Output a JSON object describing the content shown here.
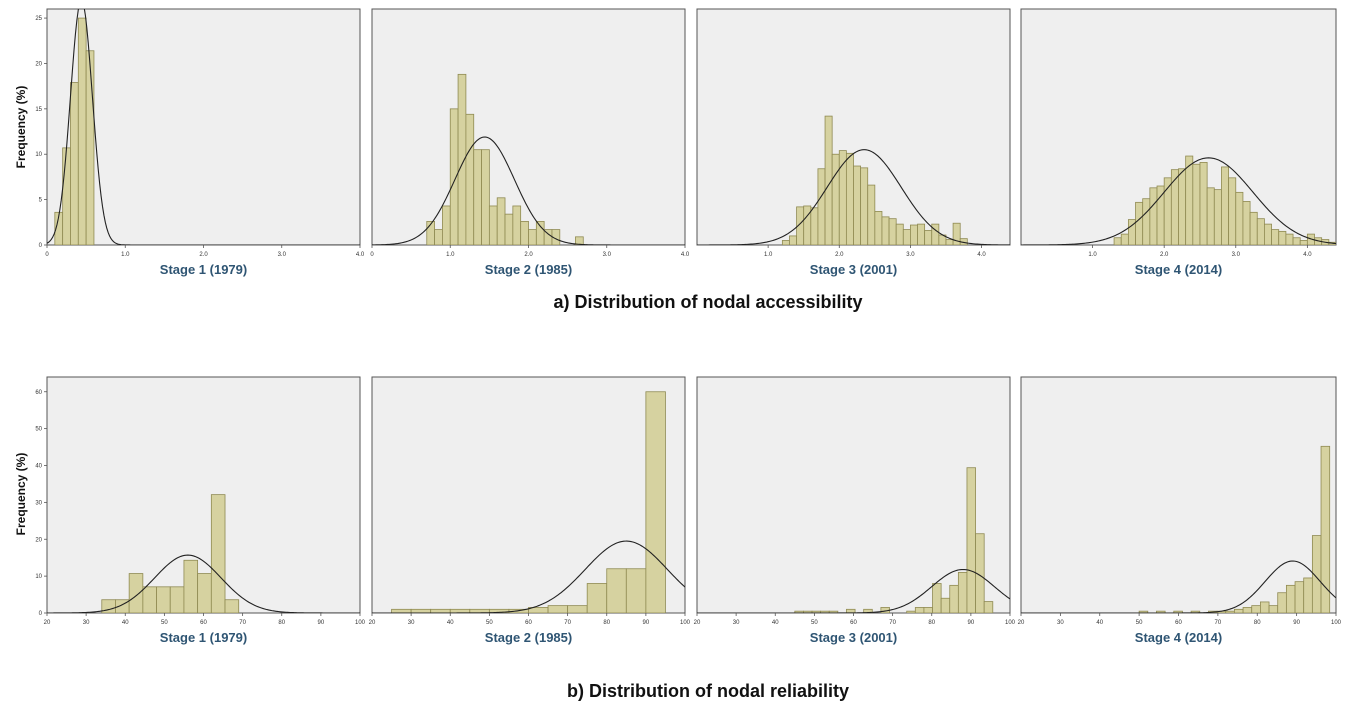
{
  "row_titles": {
    "accessibility": "a) Distribution of nodal accessibility",
    "reliability": "b) Distribution of nodal reliability"
  },
  "ylabel": "Frequency (%)",
  "chart_data": [
    {
      "id": "acc-1979",
      "row": "accessibility",
      "type": "bar",
      "title": "Stage 1 (1979)",
      "ylabel": "Frequency (%)",
      "xlim": [
        0,
        4.0
      ],
      "ylim": [
        0,
        26
      ],
      "xticks": [
        0,
        1.0,
        2.0,
        3.0,
        4.0
      ],
      "xtick_labels": [
        "0",
        "1.0",
        "2.0",
        "3.0",
        "4.0"
      ],
      "yticks": [
        0,
        5,
        10,
        15,
        20,
        25
      ],
      "ytick_labels": [
        "0",
        "5",
        "10",
        "15",
        "20",
        "25"
      ],
      "bin_width": 0.1,
      "bins": [
        0.1,
        0.2,
        0.3,
        0.4,
        0.5
      ],
      "values": [
        3.6,
        10.7,
        17.9,
        25.0,
        21.4
      ],
      "curve": {
        "mean": 0.44,
        "sd": 0.14,
        "peak": 27
      }
    },
    {
      "id": "acc-1985",
      "row": "accessibility",
      "type": "bar",
      "title": "Stage 2 (1985)",
      "ylabel": "",
      "xlim": [
        0,
        4.0
      ],
      "ylim": [
        0,
        26
      ],
      "xticks": [
        0,
        1.0,
        2.0,
        3.0,
        4.0
      ],
      "xtick_labels": [
        "0",
        "1.0",
        "2.0",
        "3.0",
        "4.0"
      ],
      "yticks": [],
      "ytick_labels": [],
      "bin_width": 0.1,
      "bins": [
        0.7,
        0.8,
        0.9,
        1.0,
        1.1,
        1.2,
        1.3,
        1.4,
        1.5,
        1.6,
        1.7,
        1.8,
        1.9,
        2.0,
        2.1,
        2.2,
        2.3,
        2.4,
        2.5,
        2.6,
        2.7
      ],
      "values": [
        2.6,
        1.7,
        4.3,
        15.0,
        18.8,
        14.4,
        10.5,
        10.5,
        4.3,
        5.2,
        3.4,
        4.3,
        2.6,
        1.7,
        2.6,
        1.7,
        1.7,
        0.0,
        0.0,
        0.9,
        0.0
      ],
      "curve": {
        "mean": 1.44,
        "sd": 0.38,
        "peak": 11.9
      }
    },
    {
      "id": "acc-2001",
      "row": "accessibility",
      "type": "bar",
      "title": "Stage 3 (2001)",
      "ylabel": "",
      "xlim": [
        0,
        4.4
      ],
      "ylim": [
        0,
        26
      ],
      "xticks": [
        1.0,
        2.0,
        3.0,
        4.0
      ],
      "xtick_labels": [
        "1.0",
        "2.0",
        "3.0",
        "4.0"
      ],
      "yticks": [],
      "ytick_labels": [],
      "bin_width": 0.1,
      "bins": [
        1.2,
        1.3,
        1.4,
        1.5,
        1.6,
        1.7,
        1.8,
        1.9,
        2.0,
        2.1,
        2.2,
        2.3,
        2.4,
        2.5,
        2.6,
        2.7,
        2.8,
        2.9,
        3.0,
        3.1,
        3.2,
        3.3,
        3.4,
        3.5,
        3.6,
        3.7,
        3.8,
        3.9
      ],
      "values": [
        0.5,
        1.0,
        4.2,
        4.3,
        4.1,
        8.4,
        14.2,
        10.0,
        10.4,
        10.1,
        8.7,
        8.5,
        6.6,
        3.7,
        3.1,
        2.9,
        2.3,
        1.7,
        2.2,
        2.3,
        1.6,
        2.3,
        1.1,
        0.6,
        2.4,
        0.7,
        0.0,
        0.0
      ],
      "curve": {
        "mean": 2.35,
        "sd": 0.52,
        "peak": 10.5
      }
    },
    {
      "id": "acc-2014",
      "row": "accessibility",
      "type": "bar",
      "title": "Stage 4 (2014)",
      "ylabel": "",
      "xlim": [
        0,
        4.4
      ],
      "ylim": [
        0,
        26
      ],
      "xticks": [
        1.0,
        2.0,
        3.0,
        4.0
      ],
      "xtick_labels": [
        "1.0",
        "2.0",
        "3.0",
        "4.0"
      ],
      "yticks": [],
      "ytick_labels": [],
      "bin_width": 0.1,
      "bins": [
        1.3,
        1.4,
        1.5,
        1.6,
        1.7,
        1.8,
        1.9,
        2.0,
        2.1,
        2.2,
        2.3,
        2.4,
        2.5,
        2.6,
        2.7,
        2.8,
        2.9,
        3.0,
        3.1,
        3.2,
        3.3,
        3.4,
        3.5,
        3.6,
        3.7,
        3.8,
        3.9,
        4.0,
        4.1,
        4.2,
        4.3
      ],
      "values": [
        0.8,
        1.2,
        2.8,
        4.7,
        5.1,
        6.3,
        6.5,
        7.4,
        8.3,
        8.4,
        9.8,
        8.9,
        9.1,
        6.3,
        6.1,
        8.6,
        7.4,
        5.8,
        4.8,
        3.6,
        2.9,
        2.3,
        1.7,
        1.5,
        1.2,
        0.8,
        0.5,
        1.2,
        0.8,
        0.6,
        0.3
      ],
      "curve": {
        "mean": 2.62,
        "sd": 0.62,
        "peak": 9.6
      }
    },
    {
      "id": "rel-1979",
      "row": "reliability",
      "type": "bar",
      "title": "Stage 1 (1979)",
      "ylabel": "Frequency (%)",
      "xlim": [
        20,
        100
      ],
      "ylim": [
        0,
        64
      ],
      "xticks": [
        20,
        30,
        40,
        50,
        60,
        70,
        80,
        90,
        100
      ],
      "xtick_labels": [
        "20",
        "30",
        "40",
        "50",
        "60",
        "70",
        "80",
        "90",
        "100"
      ],
      "yticks": [
        0,
        10,
        20,
        30,
        40,
        50,
        60
      ],
      "ytick_labels": [
        "0",
        "10",
        "20",
        "30",
        "40",
        "50",
        "60"
      ],
      "bin_width": 3.5,
      "bins": [
        34.0,
        37.5,
        41.0,
        44.5,
        48.0,
        51.5,
        55.0,
        58.5,
        62.0,
        65.5
      ],
      "values": [
        3.6,
        3.6,
        10.7,
        7.1,
        7.1,
        7.1,
        14.3,
        10.7,
        32.1,
        3.6
      ],
      "curve": {
        "mean": 56.0,
        "sd": 8.5,
        "peak": 15.7
      }
    },
    {
      "id": "rel-1985",
      "row": "reliability",
      "type": "bar",
      "title": "Stage 2 (1985)",
      "ylabel": "",
      "xlim": [
        20,
        100
      ],
      "ylim": [
        0,
        64
      ],
      "xticks": [
        20,
        30,
        40,
        50,
        60,
        70,
        80,
        90,
        100
      ],
      "xtick_labels": [
        "20",
        "30",
        "40",
        "50",
        "60",
        "70",
        "80",
        "90",
        "100"
      ],
      "yticks": [],
      "ytick_labels": [],
      "bin_width": 5,
      "bins": [
        25,
        30,
        35,
        40,
        45,
        50,
        55,
        60,
        65,
        70,
        75,
        80,
        85,
        90
      ],
      "values": [
        1.0,
        1.0,
        1.0,
        1.0,
        1.0,
        1.0,
        1.0,
        1.5,
        2.0,
        2.0,
        8.0,
        12.0,
        12.0,
        60.0
      ],
      "curve": {
        "mean": 85.0,
        "sd": 10.5,
        "peak": 19.5
      }
    },
    {
      "id": "rel-2001",
      "row": "reliability",
      "type": "bar",
      "title": "Stage 3 (2001)",
      "ylabel": "",
      "xlim": [
        20,
        100
      ],
      "ylim": [
        0,
        64
      ],
      "xticks": [
        20,
        30,
        40,
        50,
        60,
        70,
        80,
        90,
        100
      ],
      "xtick_labels": [
        "20",
        "30",
        "40",
        "50",
        "60",
        "70",
        "80",
        "90",
        "100"
      ],
      "yticks": [],
      "ytick_labels": [],
      "bin_width": 2.2,
      "bins": [
        45.0,
        47.2,
        49.4,
        51.6,
        53.8,
        56.0,
        58.2,
        60.4,
        62.6,
        64.8,
        67.0,
        69.2,
        71.4,
        73.6,
        75.8,
        78.0,
        80.2,
        82.4,
        84.6,
        86.8,
        89.0,
        91.2,
        93.4,
        95.6
      ],
      "values": [
        0.5,
        0.5,
        0.5,
        0.5,
        0.5,
        0.0,
        1.0,
        0.0,
        1.0,
        0.0,
        1.5,
        0.0,
        0.0,
        0.5,
        1.5,
        1.5,
        8.0,
        4.0,
        7.5,
        11.0,
        39.4,
        21.5,
        3.1,
        0.0
      ],
      "curve": {
        "mean": 88.0,
        "sd": 8.0,
        "peak": 11.8
      }
    },
    {
      "id": "rel-2014",
      "row": "reliability",
      "type": "bar",
      "title": "Stage 4 (2014)",
      "ylabel": "",
      "xlim": [
        20,
        100
      ],
      "ylim": [
        0,
        64
      ],
      "xticks": [
        20,
        30,
        40,
        50,
        60,
        70,
        80,
        90,
        100
      ],
      "xtick_labels": [
        "20",
        "30",
        "40",
        "50",
        "60",
        "70",
        "80",
        "90",
        "100"
      ],
      "yticks": [],
      "ytick_labels": [],
      "bin_width": 2.2,
      "bins": [
        50.0,
        52.2,
        54.4,
        56.6,
        58.8,
        61.0,
        63.2,
        65.4,
        67.6,
        69.8,
        72.0,
        74.2,
        76.4,
        78.6,
        80.8,
        83.0,
        85.2,
        87.4,
        89.6,
        91.8,
        94.0,
        96.2
      ],
      "values": [
        0.5,
        0.0,
        0.5,
        0.0,
        0.5,
        0.0,
        0.5,
        0.0,
        0.5,
        0.5,
        0.5,
        1.0,
        1.5,
        2.0,
        3.0,
        2.0,
        5.5,
        7.5,
        8.5,
        9.5,
        21.0,
        45.2
      ],
      "curve": {
        "mean": 89.0,
        "sd": 7.0,
        "peak": 14.1
      }
    }
  ]
}
